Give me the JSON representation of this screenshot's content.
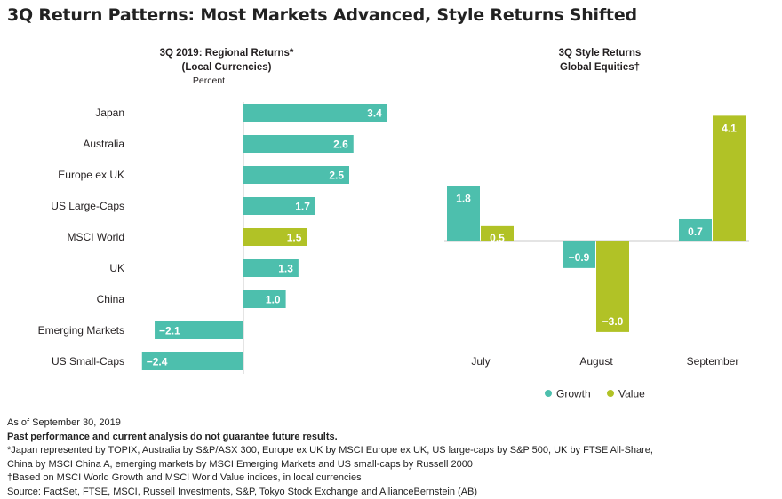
{
  "title": "3Q Return Patterns: Most Markets Advanced, Style Returns Shifted",
  "colors": {
    "teal": "#4dbfad",
    "green": "#b1c226",
    "axis": "#c8c8c8"
  },
  "chart_data": [
    {
      "type": "bar",
      "orientation": "horizontal",
      "title_line1": "3Q 2019: Regional Returns*",
      "title_line2": "(Local Currencies)",
      "unit_label": "Percent",
      "categories": [
        "Japan",
        "Australia",
        "Europe ex UK",
        "US Large-Caps",
        "MSCI World",
        "UK",
        "China",
        "Emerging Markets",
        "US Small-Caps"
      ],
      "values": [
        3.4,
        2.6,
        2.5,
        1.7,
        1.5,
        1.3,
        1.0,
        -2.1,
        -2.4
      ],
      "value_labels": [
        "3.4",
        "2.6",
        "2.5",
        "1.7",
        "1.5",
        "1.3",
        "1.0",
        "−2.1",
        "−2.4"
      ],
      "highlight": "MSCI World"
    },
    {
      "type": "bar",
      "title_line1": "3Q Style Returns",
      "title_line2": "Global Equities†",
      "categories": [
        "July",
        "August",
        "September"
      ],
      "series": [
        {
          "name": "Growth",
          "values": [
            1.8,
            -0.9,
            0.7
          ],
          "labels": [
            "1.8",
            "−0.9",
            "0.7"
          ]
        },
        {
          "name": "Value",
          "values": [
            0.5,
            -3.0,
            4.1
          ],
          "labels": [
            "0.5",
            "−3.0",
            "4.1"
          ]
        }
      ],
      "legend_position": "bottom"
    }
  ],
  "notes": {
    "as_of": "As of September 30, 2019",
    "disclaimer": "Past performance and current analysis do not guarantee future results.",
    "footnote1a": "*Japan represented by TOPIX, Australia by S&P/ASX 300, Europe ex UK by MSCI Europe ex UK, US large-caps by S&P 500, UK by FTSE All-Share,",
    "footnote1b": "China by MSCI China A, emerging markets by MSCI Emerging Markets and US small-caps by Russell 2000",
    "footnote2": "†Based on MSCI World Growth and MSCI World Value indices, in local currencies",
    "source": "Source: FactSet, FTSE, MSCI, Russell Investments, S&P, Tokyo Stock Exchange and AllianceBernstein (AB)"
  }
}
